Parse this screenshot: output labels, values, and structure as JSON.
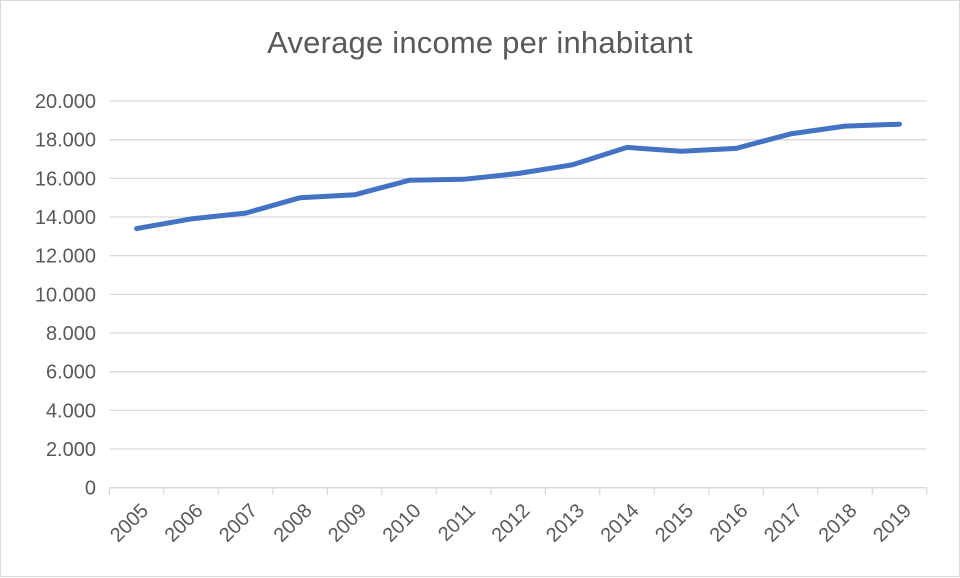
{
  "chart_data": {
    "type": "line",
    "title": "Average income per inhabitant",
    "categories": [
      "2005",
      "2006",
      "2007",
      "2008",
      "2009",
      "2010",
      "2011",
      "2012",
      "2013",
      "2014",
      "2015",
      "2016",
      "2017",
      "2018",
      "2019"
    ],
    "values": [
      13400,
      13900,
      14200,
      15000,
      15150,
      15900,
      15950,
      16250,
      16700,
      17600,
      17400,
      17550,
      18300,
      18700,
      18800
    ],
    "series": [
      {
        "name": "Average income per inhabitant",
        "values": [
          13400,
          13900,
          14200,
          15000,
          15150,
          15900,
          15950,
          16250,
          16700,
          17600,
          17400,
          17550,
          18300,
          18700,
          18800
        ]
      }
    ],
    "xlabel": "",
    "ylabel": "",
    "ylim": [
      0,
      20000
    ],
    "y_tick_step": 2000,
    "y_tick_labels": [
      "0",
      "2.000",
      "4.000",
      "6.000",
      "8.000",
      "10.000",
      "12.000",
      "14.000",
      "16.000",
      "18.000",
      "20.000"
    ],
    "grid": "horizontal",
    "legend": "none",
    "x_label_rotation_deg": 45,
    "colors": {
      "line": "#4472c4",
      "title": "#595959",
      "tick_labels": "#595959",
      "gridlines": "#d9d9d9",
      "axis": "#d9d9d9",
      "background": "#ffffff",
      "border": "#d9d9d9"
    }
  }
}
